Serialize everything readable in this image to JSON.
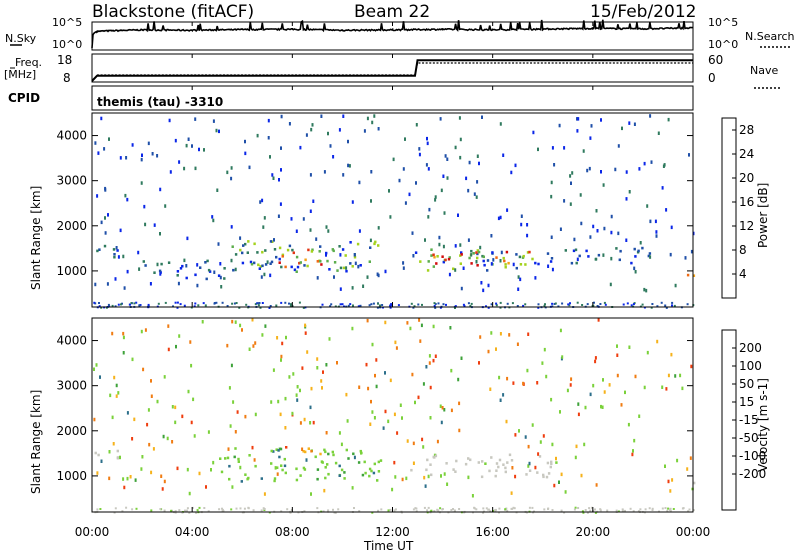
{
  "header": {
    "title": "Blackstone (fitACF)",
    "beam": "Beam 22",
    "date": "15/Feb/2012"
  },
  "noise_panel": {
    "left_label": "N.Sky",
    "right_label": "N.Search",
    "left_ticks": [
      "10^5",
      "10^0"
    ],
    "right_ticks": [
      "10^5",
      "10^0"
    ]
  },
  "freq_panel": {
    "left_label_1": "Freq.",
    "left_label_2": "[MHz]",
    "left_ticks": [
      "18",
      "8"
    ],
    "right_label": "Nave",
    "right_ticks": [
      "60",
      "0"
    ]
  },
  "cpid": {
    "label": "CPID",
    "value": "themis (tau) -3310"
  },
  "x_axis": {
    "label": "Time UT",
    "ticks": [
      "00:00",
      "04:00",
      "08:00",
      "12:00",
      "16:00",
      "20:00",
      "00:00"
    ]
  },
  "colors": {
    "power": [
      "#0a26e8",
      "#1f4fa8",
      "#2f7a5e",
      "#5cad4c",
      "#a4d21d",
      "#f5a318",
      "#ef6a12",
      "#e33514",
      "#d10d0d"
    ],
    "velocity": [
      "#e60d0d",
      "#ef3d0e",
      "#f07c12",
      "#f6b21b",
      "#c8c8c0",
      "#7ad13a",
      "#3ea23a",
      "#2c6f8a",
      "#1a43b7",
      "#0d20b8"
    ]
  },
  "chart_data": [
    {
      "type": "line",
      "title": "N.Sky / N.Search",
      "x_range_hours": [
        0,
        24
      ],
      "y_scale": "log",
      "series": [
        {
          "name": "N.Sky",
          "x": [
            0.0,
            0.2,
            2.0,
            4.0,
            6.0,
            8.0,
            10.0,
            12.0,
            14.0,
            16.0,
            18.0,
            20.0,
            22.0,
            24.0
          ],
          "values": [
            1,
            3000,
            6000,
            5000,
            7000,
            8000,
            5000,
            6000,
            8000,
            6000,
            9000,
            12000,
            10000,
            15000
          ]
        }
      ]
    },
    {
      "type": "line",
      "title": "Freq. / Nave",
      "x_range_hours": [
        0,
        24
      ],
      "ylabel": "Freq. [MHz]",
      "ylim": [
        8,
        18
      ],
      "series": [
        {
          "name": "Freq.",
          "x": [
            0.0,
            0.2,
            12.9,
            13.0,
            24.0
          ],
          "values": [
            8,
            10,
            10,
            16,
            16
          ]
        }
      ]
    },
    {
      "type": "heatmap",
      "title": "Power",
      "xlabel": "Time UT",
      "ylabel": "Slant Range [km]",
      "x_range_hours": [
        0,
        24
      ],
      "ylim": [
        200,
        4500
      ],
      "yticks": [
        1000,
        2000,
        3000,
        4000
      ],
      "colorbar": {
        "label": "Power [dB]",
        "ticks": [
          4,
          8,
          12,
          16,
          20,
          24,
          28
        ],
        "range": [
          0,
          30
        ]
      },
      "regions": [
        {
          "t": [
            0.0,
            1.2
          ],
          "range": [
            1300,
            1650
          ],
          "level": "low"
        },
        {
          "t": [
            2.0,
            5.5
          ],
          "range": [
            850,
            1250
          ],
          "level": "low"
        },
        {
          "t": [
            5.5,
            11.5
          ],
          "range": [
            1000,
            1700
          ],
          "level": "medium"
        },
        {
          "t": [
            7.0,
            9.5
          ],
          "range": [
            1100,
            1500
          ],
          "level": "high"
        },
        {
          "t": [
            12.7,
            18.0
          ],
          "range": [
            1000,
            1500
          ],
          "level": "medium"
        },
        {
          "t": [
            13.5,
            17.5
          ],
          "range": [
            1150,
            1450
          ],
          "level": "high"
        },
        {
          "t": [
            18.0,
            22.5
          ],
          "range": [
            1200,
            1550
          ],
          "level": "low"
        },
        {
          "t": [
            23.5,
            24.0
          ],
          "range": [
            700,
            950
          ],
          "level": "high"
        }
      ]
    },
    {
      "type": "heatmap",
      "title": "Velocity",
      "xlabel": "Time UT",
      "ylabel": "Slant Range [km]",
      "x_range_hours": [
        0,
        24
      ],
      "ylim": [
        200,
        4500
      ],
      "yticks": [
        1000,
        2000,
        3000,
        4000
      ],
      "colorbar": {
        "label": "Velocity [m s-1]",
        "ticks": [
          200,
          100,
          50,
          15,
          -15,
          -50,
          -100,
          -200
        ]
      },
      "regions": [
        {
          "t": [
            0.0,
            1.0
          ],
          "range": [
            1300,
            1600
          ],
          "level": "near-zero"
        },
        {
          "t": [
            5.0,
            11.5
          ],
          "range": [
            900,
            1650
          ],
          "level": "positive-small"
        },
        {
          "t": [
            7.5,
            9.5
          ],
          "range": [
            1500,
            1700
          ],
          "level": "negative-small"
        },
        {
          "t": [
            12.7,
            18.5
          ],
          "range": [
            1000,
            1500
          ],
          "level": "near-zero"
        },
        {
          "t": [
            23.5,
            24.0
          ],
          "range": [
            700,
            950
          ],
          "level": "near-zero"
        }
      ]
    }
  ]
}
